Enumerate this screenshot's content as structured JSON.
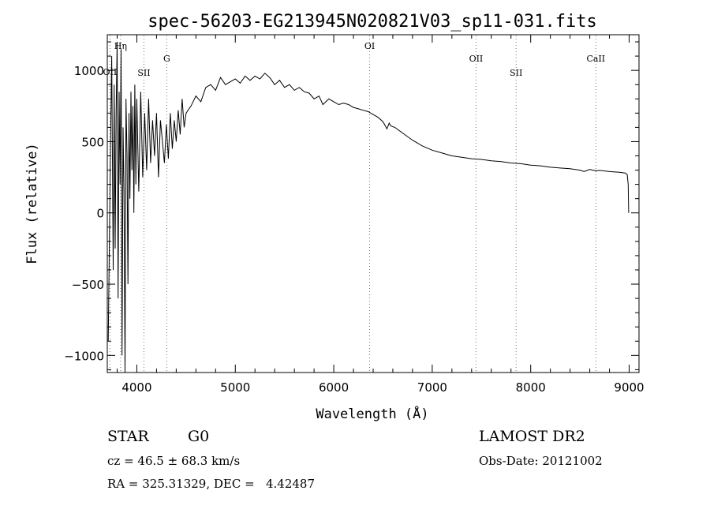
{
  "chart_data": {
    "type": "line",
    "title": "spec-56203-EG213945N020821V03_sp11-031.fits",
    "xlabel": "Wavelength (Å)",
    "ylabel": "Flux (relative)",
    "xlim": [
      3700,
      9100
    ],
    "ylim": [
      -1120,
      1250
    ],
    "x_ticks": [
      4000,
      5000,
      6000,
      7000,
      8000,
      9000
    ],
    "y_ticks": [
      -1000,
      -500,
      0,
      500,
      1000
    ],
    "grid": false,
    "line_color": "#000000",
    "line_markers": [
      {
        "label": "Hη",
        "x": 3835
      },
      {
        "label": "OII",
        "x": 3727
      },
      {
        "label": "SII",
        "x": 4072
      },
      {
        "label": "G",
        "x": 4304
      },
      {
        "label": "OI",
        "x": 6364
      },
      {
        "label": "OII",
        "x": 7445
      },
      {
        "label": "SII",
        "x": 7852
      },
      {
        "label": "CaII",
        "x": 8662
      }
    ],
    "series": [
      {
        "x": [
          3710,
          3730,
          3745,
          3760,
          3770,
          3780,
          3790,
          3800,
          3810,
          3820,
          3830,
          3840,
          3850,
          3860,
          3870,
          3880,
          3890,
          3900,
          3910,
          3920,
          3930,
          3940,
          3950,
          3960,
          3970,
          3980,
          3990,
          4000,
          4020,
          4040,
          4060,
          4080,
          4100,
          4120,
          4140,
          4160,
          4180,
          4200,
          4220,
          4240,
          4260,
          4280,
          4300,
          4320,
          4340,
          4360,
          4380,
          4400,
          4420,
          4440,
          4460,
          4480,
          4500,
          4550,
          4600,
          4650,
          4700,
          4750,
          4800,
          4850,
          4900,
          4950,
          5000,
          5050,
          5100,
          5150,
          5200,
          5250,
          5300,
          5350,
          5400,
          5450,
          5500,
          5550,
          5600,
          5650,
          5700,
          5750,
          5800,
          5850,
          5890,
          5950,
          6000,
          6050,
          6100,
          6150,
          6200,
          6250,
          6300,
          6350,
          6400,
          6450,
          6500,
          6540,
          6563,
          6580,
          6620,
          6700,
          6800,
          6900,
          7000,
          7100,
          7200,
          7300,
          7400,
          7500,
          7600,
          7700,
          7800,
          7900,
          8000,
          8100,
          8200,
          8300,
          8400,
          8500,
          8542,
          8600,
          8662,
          8700,
          8800,
          8900,
          8960,
          8980,
          8990,
          8995
        ],
        "y": [
          -900,
          300,
          1100,
          -400,
          900,
          -250,
          700,
          1200,
          -600,
          850,
          200,
          1150,
          -1000,
          600,
          150,
          -1120,
          800,
          400,
          -500,
          700,
          100,
          850,
          300,
          750,
          0,
          900,
          200,
          800,
          150,
          850,
          250,
          700,
          300,
          800,
          350,
          650,
          400,
          700,
          250,
          650,
          500,
          350,
          620,
          380,
          700,
          450,
          650,
          500,
          720,
          550,
          800,
          600,
          700,
          750,
          820,
          780,
          880,
          900,
          860,
          950,
          900,
          920,
          940,
          910,
          960,
          930,
          960,
          940,
          980,
          950,
          900,
          930,
          880,
          900,
          860,
          880,
          850,
          840,
          800,
          820,
          760,
          800,
          780,
          760,
          770,
          760,
          740,
          730,
          720,
          710,
          690,
          670,
          640,
          590,
          630,
          610,
          600,
          560,
          510,
          470,
          440,
          420,
          400,
          390,
          380,
          375,
          365,
          360,
          350,
          345,
          335,
          330,
          320,
          315,
          310,
          300,
          290,
          305,
          295,
          298,
          290,
          285,
          280,
          270,
          200,
          0
        ]
      }
    ]
  },
  "info": {
    "object_class": "STAR",
    "subclass": "G0",
    "cz": "cz = 46.5 ± 68.3 km/s",
    "radec": "RA = 325.31329, DEC =   4.42487",
    "survey": "LAMOST DR2",
    "obs_date": "Obs-Date: 20121002"
  }
}
